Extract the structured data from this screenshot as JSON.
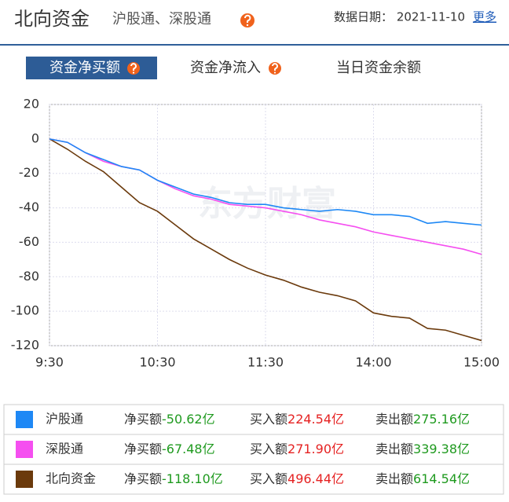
{
  "header": {
    "title": "北向资金",
    "subtitle": "沪股通、深股通",
    "date_label": "数据日期：",
    "date": "2021-11-10",
    "more": "更多"
  },
  "tabs": [
    "资金净买额",
    "资金净流入",
    "当日资金余额"
  ],
  "chart_data": {
    "type": "line",
    "watermark": "东方财富",
    "x": [
      0,
      10,
      20,
      30,
      40,
      50,
      60,
      70,
      80,
      90,
      100,
      110,
      120,
      130,
      140,
      150,
      160,
      170,
      180,
      190,
      200,
      210,
      220,
      230,
      240
    ],
    "xlim": [
      0,
      240
    ],
    "xticks": [
      {
        "value": 0,
        "label": "9:30"
      },
      {
        "value": 60,
        "label": "10:30"
      },
      {
        "value": 120,
        "label": "11:30"
      },
      {
        "value": 180,
        "label": "14:00"
      },
      {
        "value": 240,
        "label": "15:00"
      }
    ],
    "ylim": [
      -120,
      20
    ],
    "yticks": [
      20,
      0,
      -20,
      -40,
      -60,
      -80,
      -100,
      -120
    ],
    "grid": true,
    "series": [
      {
        "name": "沪股通",
        "color": "#1e88f5",
        "values": [
          0,
          -2,
          -8,
          -12,
          -16,
          -18,
          -24,
          -28,
          -32,
          -34,
          -37,
          -38,
          -38,
          -40,
          -41,
          -42,
          -41,
          -42,
          -44,
          -44,
          -45,
          -49,
          -48,
          -49,
          -50
        ]
      },
      {
        "name": "深股通",
        "color": "#f54ff0",
        "values": [
          0,
          -2,
          -8,
          -13,
          -16,
          -18,
          -24,
          -29,
          -33,
          -35,
          -38,
          -39,
          -40,
          -42,
          -44,
          -47,
          -49,
          -51,
          -54,
          -56,
          -58,
          -60,
          -62,
          -64,
          -67
        ]
      },
      {
        "name": "北向资金",
        "color": "#6b3a0c",
        "values": [
          0,
          -6,
          -13,
          -19,
          -28,
          -37,
          -42,
          -50,
          -58,
          -64,
          -70,
          -75,
          -79,
          -82,
          -86,
          -89,
          -91,
          -94,
          -101,
          -103,
          -104,
          -110,
          -111,
          -114,
          -117
        ]
      }
    ]
  },
  "legend_table": {
    "labels": [
      "净买额",
      "买入额",
      "卖出额"
    ],
    "colors": [
      "#1f9a1f",
      "#e52222",
      "#1f9a1f"
    ],
    "rows": [
      [
        "-50.62亿",
        "224.54亿",
        "275.16亿"
      ],
      [
        "-67.48亿",
        "271.90亿",
        "339.38亿"
      ],
      [
        "-118.10亿",
        "496.44亿",
        "614.54亿"
      ]
    ]
  }
}
